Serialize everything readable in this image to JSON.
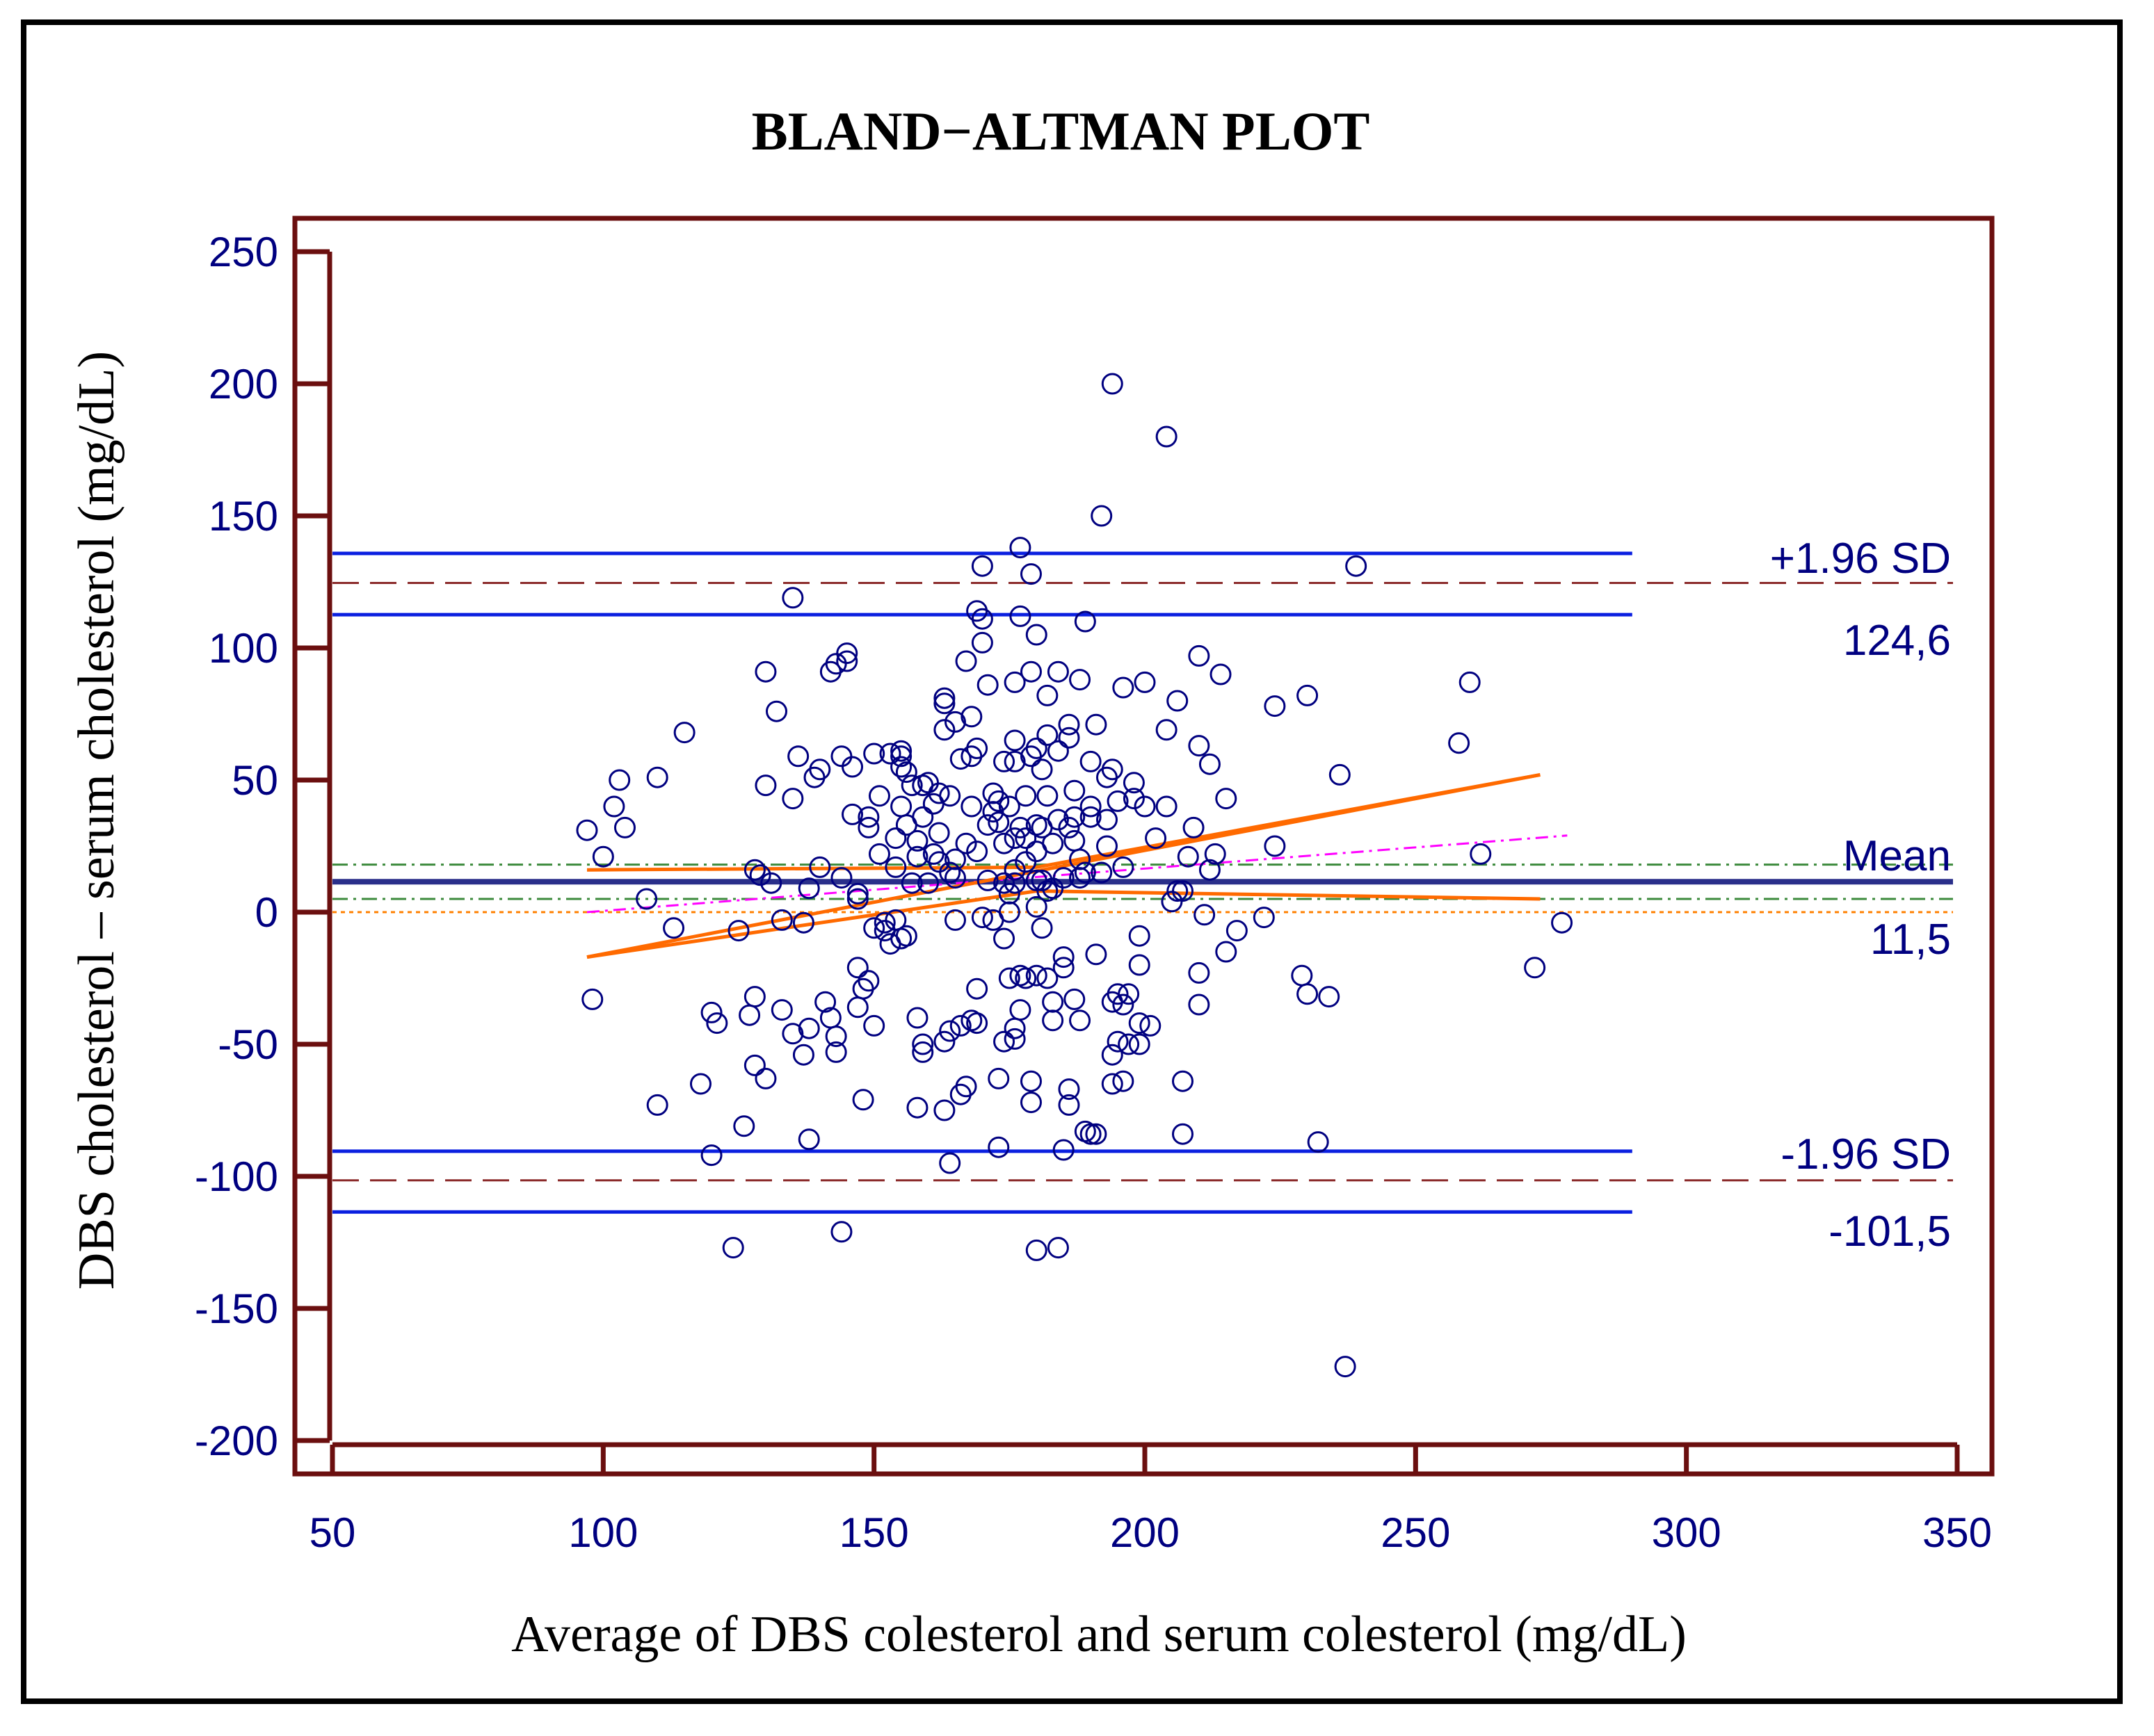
{
  "colors": {
    "frame": "#6b0f0f",
    "axis_text": "#000080",
    "points": "#000080",
    "limits": "#0a1fe0",
    "mean_line": "#2a2f8a",
    "dashed_line": "#8b2a2a",
    "regression": "#ff6a00",
    "magenta": "#ff00ff",
    "green": "#3c8a3c",
    "zero_line": "#ff8000"
  },
  "chart_data": {
    "type": "scatter",
    "title": "BLAND−ALTMAN PLOT",
    "xlabel": "Average of DBS colesterol and serum colesterol (mg/dL)",
    "ylabel": "DBS cholesterol – serum cholesterol (mg/dL)",
    "xlim": [
      50,
      350
    ],
    "ylim": [
      -200,
      250
    ],
    "x_ticks": [
      50,
      100,
      150,
      200,
      250,
      300,
      350
    ],
    "y_ticks": [
      250,
      200,
      150,
      100,
      50,
      0,
      -50,
      -100,
      -150,
      -200
    ],
    "x_tick_labels": [
      "50",
      "100",
      "150",
      "200",
      "250",
      "300",
      "350"
    ],
    "y_tick_labels": [
      "250",
      "200",
      "150",
      "100",
      "50",
      "0",
      "-50",
      "-100",
      "-150",
      "-200"
    ],
    "annotations": {
      "upper_label": "+1.96 SD",
      "upper_value": "124,6",
      "mean_label": "Mean",
      "mean_value": "11,5",
      "lower_label": "-1.96 SD",
      "lower_value": "-101,5"
    },
    "mean": 11.5,
    "upper_loa": 124.6,
    "lower_loa": -101.5,
    "upper_loa_ci": [
      112.6,
      135.8
    ],
    "lower_loa_ci": [
      -113.5,
      -90.5
    ],
    "mean_ci": [
      5.5,
      18
    ],
    "ci_line_x": [
      50,
      290
    ],
    "regression_line": [
      [
        97,
        -17
      ],
      [
        273,
        52
      ]
    ],
    "regression_ci_upper": [
      [
        97,
        16
      ],
      [
        180,
        17
      ],
      [
        273,
        52
      ]
    ],
    "regression_ci_lower": [
      [
        97,
        -17
      ],
      [
        180,
        8
      ],
      [
        273,
        5
      ]
    ],
    "magenta_line": [
      [
        97,
        0
      ],
      [
        278,
        29
      ]
    ],
    "green_lines": [
      18,
      5
    ],
    "zero_line": 0,
    "series": [
      {
        "name": "differences",
        "points": [
          [
            97,
            31
          ],
          [
            98,
            -33
          ],
          [
            100,
            21
          ],
          [
            102,
            40
          ],
          [
            103,
            50
          ],
          [
            104,
            32
          ],
          [
            108,
            5
          ],
          [
            110,
            51
          ],
          [
            110,
            -73
          ],
          [
            113,
            -6
          ],
          [
            115,
            68
          ],
          [
            118,
            -65
          ],
          [
            120,
            -92
          ],
          [
            120,
            -38
          ],
          [
            121,
            -42
          ],
          [
            124,
            -127
          ],
          [
            125,
            -7
          ],
          [
            126,
            -81
          ],
          [
            127,
            -39
          ],
          [
            128,
            -58
          ],
          [
            128,
            16
          ],
          [
            128,
            -32
          ],
          [
            129,
            14
          ],
          [
            130,
            48
          ],
          [
            130,
            -63
          ],
          [
            130,
            91
          ],
          [
            131,
            11
          ],
          [
            132,
            76
          ],
          [
            133,
            -37
          ],
          [
            133,
            -3
          ],
          [
            135,
            119
          ],
          [
            135,
            -46
          ],
          [
            135,
            43
          ],
          [
            136,
            59
          ],
          [
            137,
            -4
          ],
          [
            137,
            -54
          ],
          [
            138,
            -44
          ],
          [
            138,
            -86
          ],
          [
            138,
            9
          ],
          [
            139,
            51
          ],
          [
            140,
            54
          ],
          [
            140,
            17
          ],
          [
            141,
            -34
          ],
          [
            142,
            -40
          ],
          [
            142,
            91
          ],
          [
            143,
            -47
          ],
          [
            143,
            94
          ],
          [
            143,
            -53
          ],
          [
            144,
            59
          ],
          [
            144,
            -121
          ],
          [
            144,
            13
          ],
          [
            145,
            98
          ],
          [
            145,
            95
          ],
          [
            146,
            37
          ],
          [
            146,
            55
          ],
          [
            147,
            -36
          ],
          [
            147,
            -21
          ],
          [
            147,
            5
          ],
          [
            147,
            7
          ],
          [
            148,
            -71
          ],
          [
            148,
            -29
          ],
          [
            149,
            32
          ],
          [
            149,
            36
          ],
          [
            149,
            -26
          ],
          [
            150,
            -43
          ],
          [
            150,
            60
          ],
          [
            150,
            -6
          ],
          [
            151,
            44
          ],
          [
            151,
            22
          ],
          [
            152,
            -7
          ],
          [
            152,
            -4
          ],
          [
            153,
            60
          ],
          [
            153,
            -12
          ],
          [
            154,
            -3
          ],
          [
            154,
            17
          ],
          [
            154,
            28
          ],
          [
            155,
            55
          ],
          [
            155,
            40
          ],
          [
            155,
            61
          ],
          [
            155,
            59
          ],
          [
            155,
            -10
          ],
          [
            156,
            53
          ],
          [
            156,
            33
          ],
          [
            156,
            -9
          ],
          [
            157,
            48
          ],
          [
            157,
            11
          ],
          [
            158,
            27
          ],
          [
            158,
            -74
          ],
          [
            158,
            21
          ],
          [
            158,
            -40
          ],
          [
            159,
            -50
          ],
          [
            159,
            -53
          ],
          [
            159,
            36
          ],
          [
            159,
            48
          ],
          [
            160,
            49
          ],
          [
            160,
            11
          ],
          [
            161,
            41
          ],
          [
            161,
            22
          ],
          [
            162,
            45
          ],
          [
            162,
            19
          ],
          [
            162,
            30
          ],
          [
            163,
            -49
          ],
          [
            163,
            79
          ],
          [
            163,
            69
          ],
          [
            163,
            -75
          ],
          [
            163,
            81
          ],
          [
            164,
            -45
          ],
          [
            164,
            -95
          ],
          [
            164,
            44
          ],
          [
            164,
            15
          ],
          [
            165,
            -3
          ],
          [
            165,
            13
          ],
          [
            165,
            72
          ],
          [
            165,
            20
          ],
          [
            166,
            58
          ],
          [
            166,
            -69
          ],
          [
            166,
            -43
          ],
          [
            167,
            -66
          ],
          [
            167,
            26
          ],
          [
            167,
            95
          ],
          [
            168,
            -41
          ],
          [
            168,
            59
          ],
          [
            168,
            74
          ],
          [
            168,
            40
          ],
          [
            169,
            -29
          ],
          [
            169,
            62
          ],
          [
            169,
            114
          ],
          [
            169,
            23
          ],
          [
            169,
            -42
          ],
          [
            170,
            131
          ],
          [
            170,
            111
          ],
          [
            170,
            102
          ],
          [
            170,
            -2
          ],
          [
            171,
            12
          ],
          [
            171,
            86
          ],
          [
            171,
            33
          ],
          [
            172,
            -3
          ],
          [
            172,
            38
          ],
          [
            172,
            45
          ],
          [
            173,
            -63
          ],
          [
            173,
            42
          ],
          [
            173,
            -89
          ],
          [
            173,
            34
          ],
          [
            174,
            -10
          ],
          [
            174,
            26
          ],
          [
            174,
            -49
          ],
          [
            174,
            11
          ],
          [
            174,
            57
          ],
          [
            175,
            -25
          ],
          [
            175,
            40
          ],
          [
            175,
            0
          ],
          [
            175,
            7
          ],
          [
            176,
            -44
          ],
          [
            176,
            11
          ],
          [
            176,
            87
          ],
          [
            176,
            -48
          ],
          [
            176,
            16
          ],
          [
            176,
            65
          ],
          [
            176,
            28
          ],
          [
            176,
            57
          ],
          [
            177,
            138
          ],
          [
            177,
            112
          ],
          [
            177,
            32
          ],
          [
            177,
            -24
          ],
          [
            177,
            -37
          ],
          [
            178,
            19
          ],
          [
            178,
            -25
          ],
          [
            178,
            44
          ],
          [
            178,
            28
          ],
          [
            179,
            128
          ],
          [
            179,
            91
          ],
          [
            179,
            59
          ],
          [
            179,
            -72
          ],
          [
            179,
            -64
          ],
          [
            180,
            105
          ],
          [
            180,
            12
          ],
          [
            180,
            23
          ],
          [
            180,
            -128
          ],
          [
            180,
            33
          ],
          [
            180,
            -24
          ],
          [
            180,
            62
          ],
          [
            180,
            2
          ],
          [
            181,
            12
          ],
          [
            181,
            54
          ],
          [
            181,
            -6
          ],
          [
            181,
            32
          ],
          [
            182,
            67
          ],
          [
            182,
            8
          ],
          [
            182,
            -25
          ],
          [
            182,
            44
          ],
          [
            182,
            82
          ],
          [
            183,
            26
          ],
          [
            183,
            9
          ],
          [
            183,
            -34
          ],
          [
            183,
            -41
          ],
          [
            184,
            61
          ],
          [
            184,
            -127
          ],
          [
            184,
            91
          ],
          [
            184,
            35
          ],
          [
            185,
            -21
          ],
          [
            185,
            -90
          ],
          [
            185,
            -17
          ],
          [
            185,
            13
          ],
          [
            186,
            66
          ],
          [
            186,
            71
          ],
          [
            186,
            32
          ],
          [
            186,
            -67
          ],
          [
            186,
            -73
          ],
          [
            187,
            36
          ],
          [
            187,
            46
          ],
          [
            187,
            27
          ],
          [
            187,
            -33
          ],
          [
            188,
            -41
          ],
          [
            188,
            20
          ],
          [
            188,
            13
          ],
          [
            188,
            88
          ],
          [
            189,
            110
          ],
          [
            189,
            -83
          ],
          [
            189,
            15
          ],
          [
            190,
            57
          ],
          [
            190,
            40
          ],
          [
            190,
            36
          ],
          [
            190,
            -84
          ],
          [
            191,
            71
          ],
          [
            191,
            -16
          ],
          [
            191,
            -84
          ],
          [
            192,
            15
          ],
          [
            192,
            150
          ],
          [
            193,
            51
          ],
          [
            193,
            25
          ],
          [
            193,
            35
          ],
          [
            194,
            54
          ],
          [
            194,
            -65
          ],
          [
            194,
            200
          ],
          [
            194,
            -34
          ],
          [
            194,
            -54
          ],
          [
            195,
            -49
          ],
          [
            195,
            -31
          ],
          [
            195,
            42
          ],
          [
            196,
            -35
          ],
          [
            196,
            17
          ],
          [
            196,
            -64
          ],
          [
            196,
            85
          ],
          [
            197,
            -50
          ],
          [
            197,
            -31
          ],
          [
            198,
            49
          ],
          [
            198,
            43
          ],
          [
            199,
            -50
          ],
          [
            199,
            -42
          ],
          [
            199,
            -9
          ],
          [
            199,
            -20
          ],
          [
            200,
            40
          ],
          [
            200,
            87
          ],
          [
            201,
            -43
          ],
          [
            202,
            28
          ],
          [
            204,
            180
          ],
          [
            204,
            40
          ],
          [
            204,
            69
          ],
          [
            205,
            4
          ],
          [
            206,
            8
          ],
          [
            206,
            80
          ],
          [
            207,
            -64
          ],
          [
            207,
            -84
          ],
          [
            207,
            8
          ],
          [
            208,
            21
          ],
          [
            209,
            32
          ],
          [
            210,
            97
          ],
          [
            210,
            63
          ],
          [
            210,
            -23
          ],
          [
            210,
            -35
          ],
          [
            211,
            -1
          ],
          [
            212,
            16
          ],
          [
            212,
            56
          ],
          [
            213,
            22
          ],
          [
            214,
            90
          ],
          [
            215,
            -15
          ],
          [
            215,
            43
          ],
          [
            217,
            -7
          ],
          [
            222,
            -2
          ],
          [
            224,
            78
          ],
          [
            224,
            25
          ],
          [
            229,
            -24
          ],
          [
            230,
            -31
          ],
          [
            230,
            82
          ],
          [
            232,
            -87
          ],
          [
            234,
            -32
          ],
          [
            236,
            52
          ],
          [
            237,
            -172
          ],
          [
            239,
            131
          ],
          [
            258,
            64
          ],
          [
            260,
            87
          ],
          [
            262,
            22
          ],
          [
            272,
            -21
          ],
          [
            277,
            -4
          ]
        ]
      }
    ]
  }
}
